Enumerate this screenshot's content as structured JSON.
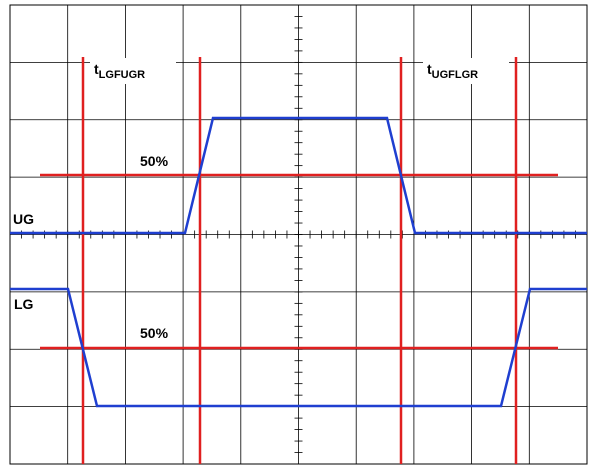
{
  "annotations": [
    {
      "text": "t",
      "subscript": "LGFUGR"
    },
    {
      "text": "t",
      "subscript": "UGFLGR"
    },
    {
      "text": "50%"
    },
    {
      "text": "50%"
    }
  ],
  "signals": [
    {
      "name": "UG"
    },
    {
      "name": "LG"
    }
  ]
}
